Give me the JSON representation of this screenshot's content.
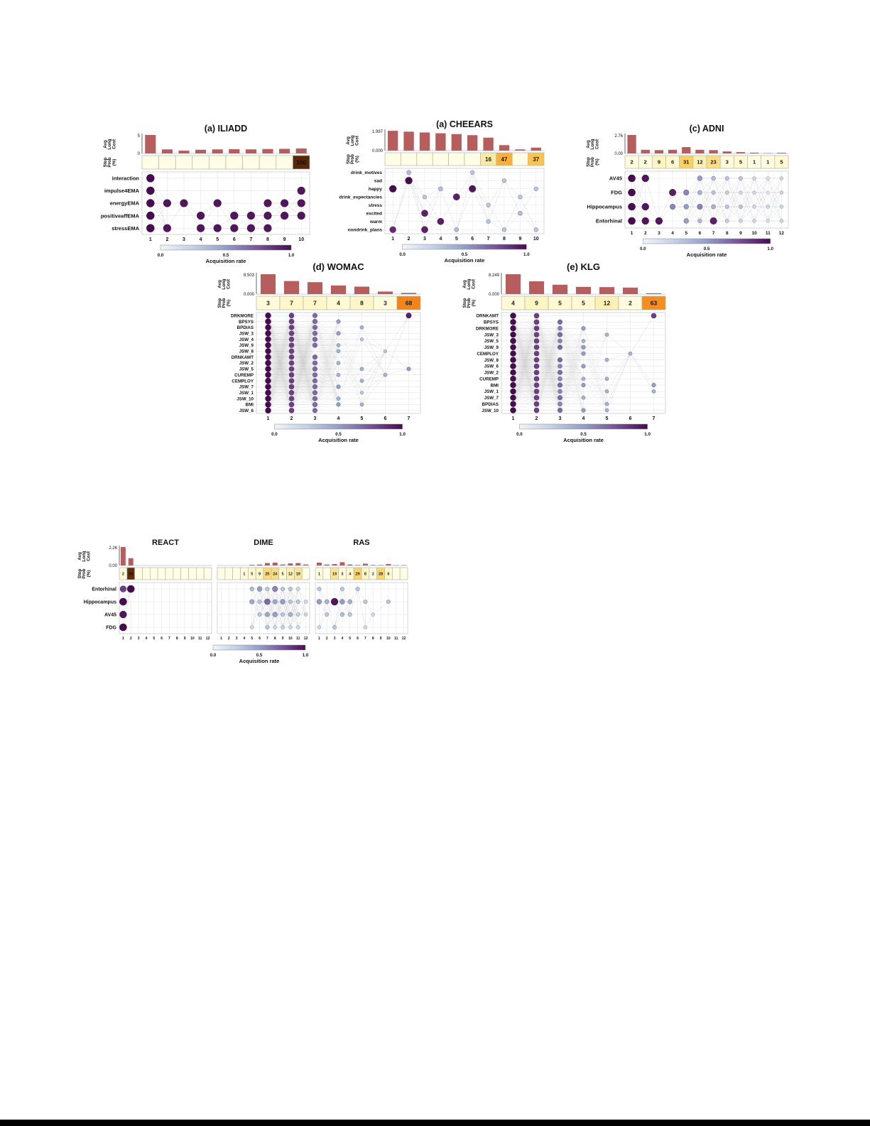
{
  "axis_labels": {
    "cost": [
      "Avg",
      "Long",
      "Cost"
    ],
    "stop": [
      "Stop",
      "Prob",
      "(%)"
    ]
  },
  "colorbar": {
    "label": "Acquisition rate",
    "ticks": [
      "0.0",
      "0.5",
      "1.0"
    ]
  },
  "colors": {
    "bar": "#b65d5d",
    "line": "#777777",
    "dot_ramp": [
      [
        0,
        "#f2f4f9"
      ],
      [
        0.2,
        "#cdd9ea"
      ],
      [
        0.4,
        "#a3b4d6"
      ],
      [
        0.55,
        "#8d93c2"
      ],
      [
        0.7,
        "#7e6aa8"
      ],
      [
        0.85,
        "#652a73"
      ],
      [
        1,
        "#470c50"
      ]
    ],
    "stop_ramp": [
      [
        0,
        "#fffde6"
      ],
      [
        0.08,
        "#fdf6c6"
      ],
      [
        0.18,
        "#fbe79a"
      ],
      [
        0.3,
        "#fbd264"
      ],
      [
        0.45,
        "#fab33c"
      ],
      [
        0.6,
        "#f79426"
      ],
      [
        0.72,
        "#f07d13"
      ],
      [
        0.85,
        "#a04c08"
      ],
      [
        1,
        "#59280a"
      ]
    ]
  },
  "chart_data": [
    {
      "type": "temporal-acquisition",
      "name": "iliadd",
      "title": "(a) ILIADD",
      "cost_ticks": {
        "min": "0",
        "max": "5"
      },
      "cost_max": 5,
      "cost_values": [
        5.0,
        1.1,
        0.75,
        1.0,
        1.1,
        1.15,
        1.1,
        1.2,
        1.25,
        1.35
      ],
      "stop_values": [
        "",
        "",
        "",
        "",
        "",
        "",
        "",
        "",
        "",
        "100"
      ],
      "x_ticks": [
        "1",
        "2",
        "3",
        "4",
        "5",
        "6",
        "7",
        "8",
        "9",
        "10"
      ],
      "features": [
        "interaction",
        "impulse4EMA",
        "energyEMA",
        "positiveaffEMA",
        "stressEMA"
      ],
      "acquisition": [
        [
          1,
          0,
          0,
          0,
          0,
          0,
          0,
          0,
          0,
          0
        ],
        [
          1,
          0,
          0,
          0,
          0,
          0,
          0,
          0,
          0,
          0.95
        ],
        [
          1,
          0.95,
          0.95,
          0,
          0.95,
          0,
          0,
          0.95,
          0.95,
          0.95
        ],
        [
          1,
          0,
          0,
          0.95,
          0,
          0.95,
          0.95,
          0.95,
          0.95,
          0.95
        ],
        [
          1,
          0.95,
          0,
          0.95,
          0.95,
          0.95,
          0.95,
          0.95,
          0,
          0
        ]
      ]
    },
    {
      "type": "temporal-acquisition",
      "name": "cheears",
      "title": "(a) CHEEARS",
      "cost_ticks": {
        "min": "0.000",
        "max": "1.997"
      },
      "cost_max": 1.997,
      "cost_values": [
        1.99,
        1.9,
        1.82,
        1.74,
        1.66,
        1.55,
        1.3,
        0.55,
        0.12,
        0.3
      ],
      "stop_values": [
        "",
        "",
        "",
        "",
        "",
        "",
        "16",
        "47",
        "",
        "37"
      ],
      "x_ticks": [
        "1",
        "2",
        "3",
        "4",
        "5",
        "6",
        "7",
        "8",
        "9",
        "10"
      ],
      "features": [
        "drink_motives",
        "sad",
        "happy",
        "drink_expectancies",
        "stress",
        "excited",
        "warm",
        "nondrink_plans"
      ],
      "acquisition": [
        [
          0,
          0.35,
          0,
          0,
          0,
          0.3,
          0,
          0,
          0,
          0
        ],
        [
          0,
          1,
          0,
          0,
          0,
          0,
          0,
          0.3,
          0,
          0
        ],
        [
          1,
          0,
          0,
          0.35,
          0,
          0.95,
          0,
          0,
          0,
          0.3
        ],
        [
          0,
          0,
          0.3,
          0,
          0.9,
          0,
          0,
          0,
          0.3,
          0
        ],
        [
          0,
          0,
          0,
          0,
          0,
          0,
          0.3,
          0,
          0,
          0
        ],
        [
          0,
          0,
          0.9,
          0,
          0,
          0,
          0,
          0,
          0.35,
          0
        ],
        [
          0,
          0,
          0,
          0.9,
          0,
          0,
          0.3,
          0,
          0,
          0
        ],
        [
          0.85,
          0,
          0.9,
          0,
          0.35,
          0,
          0,
          0.3,
          0,
          0.3
        ]
      ]
    },
    {
      "type": "temporal-acquisition",
      "name": "adni",
      "title": "(c) ADNI",
      "cost_ticks": {
        "min": "0.00",
        "max": "2.76"
      },
      "cost_max": 2.76,
      "cost_values": [
        2.76,
        0.55,
        0.5,
        0.55,
        0.95,
        0.55,
        0.5,
        0.3,
        0.2,
        0.12,
        0.05,
        0.1
      ],
      "stop_values": [
        "2",
        "2",
        "9",
        "6",
        "31",
        "12",
        "23",
        "3",
        "5",
        "1",
        "1",
        "5"
      ],
      "x_ticks": [
        "1",
        "2",
        "3",
        "4",
        "5",
        "6",
        "7",
        "8",
        "9",
        "10",
        "11",
        "12"
      ],
      "features": [
        "AV45",
        "FDG",
        "Hippocampus",
        "Entorhinal"
      ],
      "acquisition": [
        [
          1,
          0.95,
          0,
          0,
          0,
          0.5,
          0.35,
          0.3,
          0.3,
          0.2,
          0.15,
          0.2
        ],
        [
          1,
          0,
          0,
          0.9,
          0.6,
          0.4,
          0.3,
          0.25,
          0.2,
          0.2,
          0.1,
          0.2
        ],
        [
          1,
          0.95,
          0,
          0.6,
          0.5,
          0.6,
          0.4,
          0.3,
          0.3,
          0.2,
          0.2,
          0.2
        ],
        [
          1,
          0.95,
          0.95,
          0,
          0.5,
          0.35,
          0.9,
          0.25,
          0.2,
          0.2,
          0.15,
          0.2
        ]
      ]
    },
    {
      "type": "temporal-acquisition",
      "name": "womac",
      "title": "(d) WOMAC",
      "cost_ticks": {
        "min": "0.000",
        "max": "8.503"
      },
      "cost_max": 8.503,
      "cost_values": [
        8.5,
        5.6,
        5.1,
        3.7,
        3.2,
        1.1,
        0.5
      ],
      "stop_values": [
        "3",
        "7",
        "7",
        "4",
        "8",
        "3",
        "68"
      ],
      "x_ticks": [
        "1",
        "2",
        "3",
        "4",
        "5",
        "6",
        "7"
      ],
      "features": [
        "DRKMORE",
        "BPSYS",
        "BPDIAS",
        "JSW_3",
        "JSW_4",
        "JSW_9",
        "JSW_8",
        "DRNKAMT",
        "JSW_2",
        "JSW_5",
        "CUREMP",
        "CEMPLOY",
        "JSW_7",
        "JSW_1",
        "JSW_10",
        "BMI",
        "JSW_6"
      ],
      "acquisition": [
        [
          1,
          0.8,
          0.7,
          0,
          0,
          0,
          0.9
        ],
        [
          1,
          0.8,
          0.7,
          0.5,
          0,
          0,
          0
        ],
        [
          1,
          0.8,
          0.7,
          0,
          0.4,
          0,
          0
        ],
        [
          1,
          0.8,
          0.7,
          0.5,
          0,
          0,
          0
        ],
        [
          1,
          0.8,
          0.7,
          0,
          0.3,
          0,
          0
        ],
        [
          1,
          0.8,
          0.7,
          0.4,
          0,
          0,
          0
        ],
        [
          1,
          0.8,
          0,
          0.4,
          0,
          0.3,
          0
        ],
        [
          1,
          0.8,
          0.7,
          0,
          0,
          0,
          0
        ],
        [
          1,
          0.8,
          0.7,
          0.4,
          0,
          0,
          0
        ],
        [
          1,
          0.8,
          0.7,
          0,
          0.4,
          0,
          0.5
        ],
        [
          1,
          0.8,
          0.7,
          0.4,
          0,
          0.4,
          0
        ],
        [
          1,
          0.8,
          0.7,
          0,
          0.4,
          0,
          0
        ],
        [
          1,
          0.8,
          0.7,
          0.5,
          0,
          0,
          0
        ],
        [
          1,
          0.8,
          0.7,
          0,
          0.3,
          0,
          0
        ],
        [
          1,
          0.8,
          0.7,
          0.4,
          0,
          0,
          0
        ],
        [
          1,
          0.8,
          0.7,
          0.5,
          0.4,
          0,
          0
        ],
        [
          1,
          0.8,
          0.7,
          0,
          0,
          0,
          0
        ]
      ]
    },
    {
      "type": "temporal-acquisition",
      "name": "klg",
      "title": "(e) KLG",
      "cost_ticks": {
        "min": "0.000",
        "max": "8.249"
      },
      "cost_max": 8.249,
      "cost_values": [
        8.25,
        5.3,
        3.9,
        3.0,
        2.9,
        2.7,
        0.35
      ],
      "stop_values": [
        "4",
        "9",
        "5",
        "5",
        "12",
        "2",
        "63"
      ],
      "x_ticks": [
        "1",
        "2",
        "3",
        "4",
        "5",
        "6",
        "7"
      ],
      "features": [
        "DRNKAMT",
        "BPSYS",
        "DRKMORE",
        "JSW_3",
        "JSW_5",
        "JSW_9",
        "CEMPLOY",
        "JSW_8",
        "JSW_6",
        "JSW_2",
        "CUREMP",
        "BMI",
        "JSW_1",
        "JSW_7",
        "BPDIAS",
        "JSW_10"
      ],
      "acquisition": [
        [
          1,
          0.8,
          0,
          0,
          0,
          0,
          0.8
        ],
        [
          1,
          0.8,
          0.7,
          0,
          0,
          0,
          0
        ],
        [
          1,
          0.8,
          0.6,
          0.5,
          0,
          0,
          0
        ],
        [
          1,
          0.8,
          0.7,
          0,
          0.4,
          0,
          0
        ],
        [
          1,
          0.8,
          0.6,
          0.4,
          0,
          0,
          0
        ],
        [
          1,
          0.8,
          0.7,
          0.5,
          0,
          0,
          0
        ],
        [
          1,
          0.8,
          0,
          0.5,
          0,
          0.4,
          0
        ],
        [
          1,
          0.8,
          0.7,
          0,
          0.4,
          0,
          0
        ],
        [
          1,
          0.8,
          0.6,
          0.5,
          0,
          0,
          0
        ],
        [
          1,
          0.8,
          0.7,
          0,
          0,
          0,
          0
        ],
        [
          1,
          0.8,
          0.6,
          0.4,
          0.4,
          0,
          0
        ],
        [
          1,
          0.8,
          0.7,
          0.5,
          0,
          0,
          0.5
        ],
        [
          1,
          0.8,
          0.6,
          0,
          0.4,
          0,
          0.4
        ],
        [
          1,
          0.8,
          0.7,
          0.4,
          0,
          0,
          0
        ],
        [
          1,
          0.8,
          0.6,
          0,
          0.4,
          0,
          0
        ],
        [
          1,
          0.8,
          0.7,
          0.5,
          0.4,
          0,
          0
        ]
      ]
    },
    {
      "type": "temporal-acquisition",
      "name": "react",
      "title": "REACT",
      "cost_ticks": {
        "min": "0.00",
        "max": "2.26"
      },
      "cost_max": 2.26,
      "cost_values": [
        2.26,
        0.9,
        0,
        0,
        0,
        0,
        0,
        0,
        0,
        0,
        0,
        0
      ],
      "stop_values": [
        "2",
        "98",
        "",
        "",
        "",
        "",
        "",
        "",
        "",
        "",
        "",
        ""
      ],
      "x_ticks": [
        "1",
        "2",
        "3",
        "4",
        "5",
        "6",
        "7",
        "8",
        "9",
        "10",
        "11",
        "12"
      ],
      "features": [
        "Entorhinal",
        "Hippocampus",
        "AV45",
        "FDG"
      ],
      "acquisition": [
        [
          0.8,
          1,
          0,
          0,
          0,
          0,
          0,
          0,
          0,
          0,
          0,
          0
        ],
        [
          1,
          0,
          0,
          0,
          0,
          0,
          0,
          0,
          0,
          0,
          0,
          0
        ],
        [
          0.95,
          0,
          0,
          0,
          0,
          0,
          0,
          0,
          0,
          0,
          0,
          0
        ],
        [
          1,
          0,
          0,
          0,
          0,
          0,
          0,
          0,
          0,
          0,
          0,
          0
        ]
      ]
    },
    {
      "type": "temporal-acquisition",
      "name": "dime",
      "title": "DIME",
      "cost_ticks": {
        "min": "0.00",
        "max": "2.26"
      },
      "cost_max": 2.26,
      "cost_values": [
        0,
        0,
        0,
        0,
        0.08,
        0.12,
        0.3,
        0.35,
        0.12,
        0.25,
        0.3,
        0.12
      ],
      "stop_values": [
        "",
        "",
        "",
        "1",
        "5",
        "9",
        "25",
        "24",
        "5",
        "12",
        "19",
        ""
      ],
      "x_ticks": [
        "1",
        "2",
        "3",
        "4",
        "5",
        "6",
        "7",
        "8",
        "9",
        "10",
        "11",
        "12"
      ],
      "features": [
        "Entorhinal",
        "Hippocampus",
        "AV45",
        "FDG"
      ],
      "acquisition": [
        [
          0,
          0,
          0,
          0,
          0.35,
          0.5,
          0.3,
          0.6,
          0.3,
          0.3,
          0.2,
          0
        ],
        [
          0,
          0,
          0,
          0,
          0.45,
          0.3,
          0.7,
          0.45,
          0.5,
          0.3,
          0.3,
          0.2
        ],
        [
          0,
          0,
          0,
          0,
          0,
          0.3,
          0.45,
          0.5,
          0.3,
          0.4,
          0.25,
          0.2
        ],
        [
          0,
          0,
          0,
          0,
          0.2,
          0,
          0.3,
          0.2,
          0.25,
          0.2,
          0.2,
          0
        ]
      ]
    },
    {
      "type": "temporal-acquisition",
      "name": "ras",
      "title": "RAS",
      "cost_ticks": {
        "min": "0.00",
        "max": "2.26"
      },
      "cost_max": 2.26,
      "cost_values": [
        0.35,
        0.12,
        0.18,
        0.4,
        0.12,
        0.06,
        0.22,
        0.06,
        0.05,
        0.18,
        0.04,
        0.04
      ],
      "stop_values": [
        "1",
        "",
        "19",
        "3",
        "4",
        "29",
        "8",
        "2",
        "28",
        "6",
        "",
        ""
      ],
      "x_ticks": [
        "1",
        "2",
        "3",
        "4",
        "5",
        "6",
        "7",
        "8",
        "9",
        "10",
        "11",
        "12"
      ],
      "features": [
        "Entorhinal",
        "Hippocampus",
        "AV45",
        "FDG"
      ],
      "acquisition": [
        [
          0.3,
          0,
          0,
          0.3,
          0,
          0.3,
          0,
          0,
          0,
          0,
          0,
          0
        ],
        [
          0.5,
          0.4,
          0.95,
          0.5,
          0.4,
          0,
          0.3,
          0,
          0,
          0.3,
          0,
          0
        ],
        [
          0,
          0.3,
          0,
          0.35,
          0.3,
          0,
          0,
          0.2,
          0,
          0,
          0,
          0
        ],
        [
          0.2,
          0,
          0.3,
          0,
          0,
          0,
          0.2,
          0,
          0,
          0,
          0,
          0
        ]
      ]
    }
  ]
}
